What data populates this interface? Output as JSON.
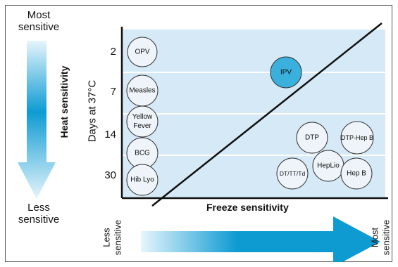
{
  "left_arrow": {
    "top_label_line1": "Most",
    "top_label_line2": "sensitive",
    "bottom_label_line1": "Less",
    "bottom_label_line2": "sensitive",
    "axis_name": "Heat sensitivity"
  },
  "bottom_arrow": {
    "left_label_line1": "Less",
    "left_label_line2": "sensitive",
    "right_label_line1": "Most",
    "right_label_line2": "sensitive"
  },
  "y_axis": {
    "title": "Days at 37°C",
    "ticks": [
      "2",
      "7",
      "14",
      "30"
    ]
  },
  "x_axis": {
    "title": "Freeze sensitivity"
  },
  "colors": {
    "plot_bg": "#d6e9f6",
    "band_line": "#ffffff",
    "bubble_fill": "#eef4f9",
    "highlight_fill": "#3ab0dd",
    "arrow_dark": "#0e9bd2",
    "arrow_light": "#e6f5fc"
  },
  "vaccines": [
    {
      "label": "OPV",
      "highlighted": false
    },
    {
      "label": "Measles",
      "highlighted": false
    },
    {
      "label": "Yellow Fever",
      "highlighted": false
    },
    {
      "label": "BCG",
      "highlighted": false
    },
    {
      "label": "Hib Lyo",
      "highlighted": false
    },
    {
      "label": "IPV",
      "highlighted": true
    },
    {
      "label": "DTP",
      "highlighted": false
    },
    {
      "label": "DTP-Hep B",
      "highlighted": false
    },
    {
      "label": "HepLio",
      "highlighted": false
    },
    {
      "label": "DT/TT/Td",
      "highlighted": false
    },
    {
      "label": "Hep B",
      "highlighted": false
    }
  ]
}
